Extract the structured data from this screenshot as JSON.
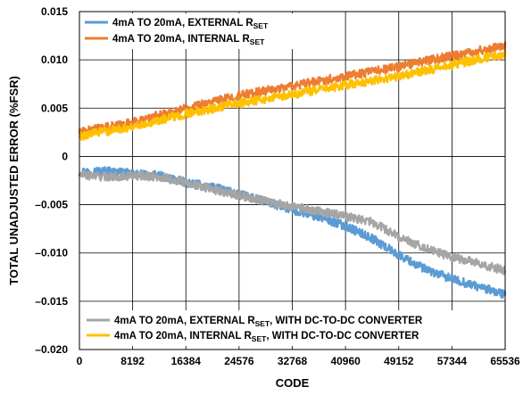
{
  "chart_data": {
    "type": "line",
    "xlabel": "CODE",
    "ylabel": "TOTAL UNADJUSTED ERROR (%FSR)",
    "xlim": [
      0,
      65536
    ],
    "ylim": [
      -0.02,
      0.015
    ],
    "x_ticks": [
      0,
      8192,
      16384,
      24576,
      32768,
      40960,
      49152,
      57344,
      65536
    ],
    "x_tick_labels": [
      "0",
      "8192",
      "16384",
      "24576",
      "32768",
      "40960",
      "49152",
      "57344",
      "65536"
    ],
    "y_ticks": [
      -0.02,
      -0.015,
      -0.01,
      -0.005,
      0,
      0.005,
      0.01,
      0.015
    ],
    "y_tick_labels": [
      "–0.020",
      "–0.015",
      "–0.010",
      "–0.005",
      "0",
      "0.005",
      "0.010",
      "0.015"
    ],
    "grid": true,
    "legend_top": {
      "placement": "top-left",
      "series_indices": [
        0,
        1
      ]
    },
    "legend_bottom": {
      "placement": "bottom-left",
      "series_indices": [
        2,
        3
      ]
    },
    "series": [
      {
        "name": "4mA TO 20mA, EXTERNAL RSET",
        "label_main": "4mA TO 20mA, EXTERNAL R",
        "label_sub": "SET",
        "label_tail": "",
        "color": "#5b9bd5",
        "noise": 0.00045,
        "x": [
          0,
          4096,
          8192,
          12288,
          16384,
          20480,
          24576,
          28672,
          32768,
          36864,
          40960,
          45056,
          49152,
          53248,
          57344,
          61440,
          65536
        ],
        "y": [
          -0.0016,
          -0.0015,
          -0.0018,
          -0.002,
          -0.0027,
          -0.0032,
          -0.0039,
          -0.0047,
          -0.0055,
          -0.0063,
          -0.0072,
          -0.0085,
          -0.0102,
          -0.0117,
          -0.0127,
          -0.0135,
          -0.0143
        ]
      },
      {
        "name": "4mA TO 20mA, INTERNAL RSET",
        "label_main": "4mA TO 20mA, INTERNAL R",
        "label_sub": "SET",
        "label_tail": "",
        "color": "#ed7d31",
        "noise": 0.00045,
        "x": [
          0,
          8192,
          16384,
          24576,
          32768,
          40960,
          49152,
          57344,
          65536
        ],
        "y": [
          0.0025,
          0.0035,
          0.005,
          0.0063,
          0.0073,
          0.0083,
          0.0093,
          0.0104,
          0.0115
        ]
      },
      {
        "name": "4mA TO 20mA, EXTERNAL RSET, WITH DC-TO-DC CONVERTER",
        "label_main": "4mA TO 20mA, EXTERNAL R",
        "label_sub": "SET",
        "label_tail": ", WITH DC-TO-DC CONVERTER",
        "color": "#a5a5a5",
        "noise": 0.00045,
        "x": [
          0,
          4096,
          8192,
          12288,
          16384,
          20480,
          24576,
          28672,
          32768,
          36864,
          40960,
          45056,
          49152,
          53248,
          57344,
          61440,
          65536
        ],
        "y": [
          -0.0019,
          -0.0021,
          -0.002,
          -0.0021,
          -0.0027,
          -0.0034,
          -0.004,
          -0.0046,
          -0.0052,
          -0.0057,
          -0.0062,
          -0.0068,
          -0.0083,
          -0.0095,
          -0.0104,
          -0.0111,
          -0.0118
        ]
      },
      {
        "name": "4mA TO 20mA, INTERNAL RSET, WITH DC-TO-DC CONVERTER",
        "label_main": "4mA TO 20mA, INTERNAL R",
        "label_sub": "SET",
        "label_tail": ", WITH DC-TO-DC CONVERTER",
        "color": "#ffc000",
        "noise": 0.00045,
        "x": [
          0,
          8192,
          16384,
          24576,
          32768,
          40960,
          49152,
          57344,
          65536
        ],
        "y": [
          0.0021,
          0.0031,
          0.0044,
          0.0055,
          0.0064,
          0.0074,
          0.0083,
          0.0095,
          0.0106
        ]
      }
    ]
  }
}
